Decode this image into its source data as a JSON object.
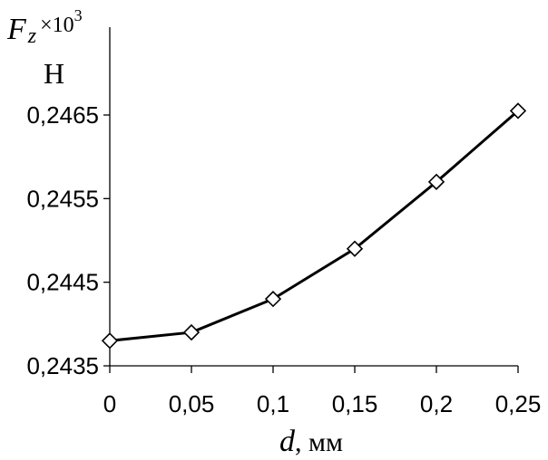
{
  "chart_data": {
    "type": "line",
    "y_title": {
      "symbol": "F",
      "subscript": "z",
      "multiplier": "×10",
      "exponent": "3",
      "unit": "Н"
    },
    "x_title": {
      "symbol": "d",
      "unit": ", мм"
    },
    "x_ticks": [
      "0",
      "0,05",
      "0,1",
      "0,15",
      "0,2",
      "0,25"
    ],
    "y_ticks": [
      "0,2435",
      "0,2445",
      "0,2455",
      "0,2465"
    ],
    "xlim": [
      0,
      0.25
    ],
    "ylim": [
      0.2435,
      0.2465
    ],
    "x_tick_values": [
      0,
      0.05,
      0.1,
      0.15,
      0.2,
      0.25
    ],
    "y_tick_values": [
      0.2435,
      0.2445,
      0.2455,
      0.2465
    ],
    "series": [
      {
        "marker": "diamond",
        "x": [
          0,
          0.05,
          0.1,
          0.15,
          0.2,
          0.25
        ],
        "y": [
          0.2438,
          0.2439,
          0.2443,
          0.2449,
          0.2457,
          0.24655
        ]
      }
    ],
    "grid": false,
    "colors": {
      "line": "#000000",
      "marker_fill": "#ffffff"
    }
  }
}
